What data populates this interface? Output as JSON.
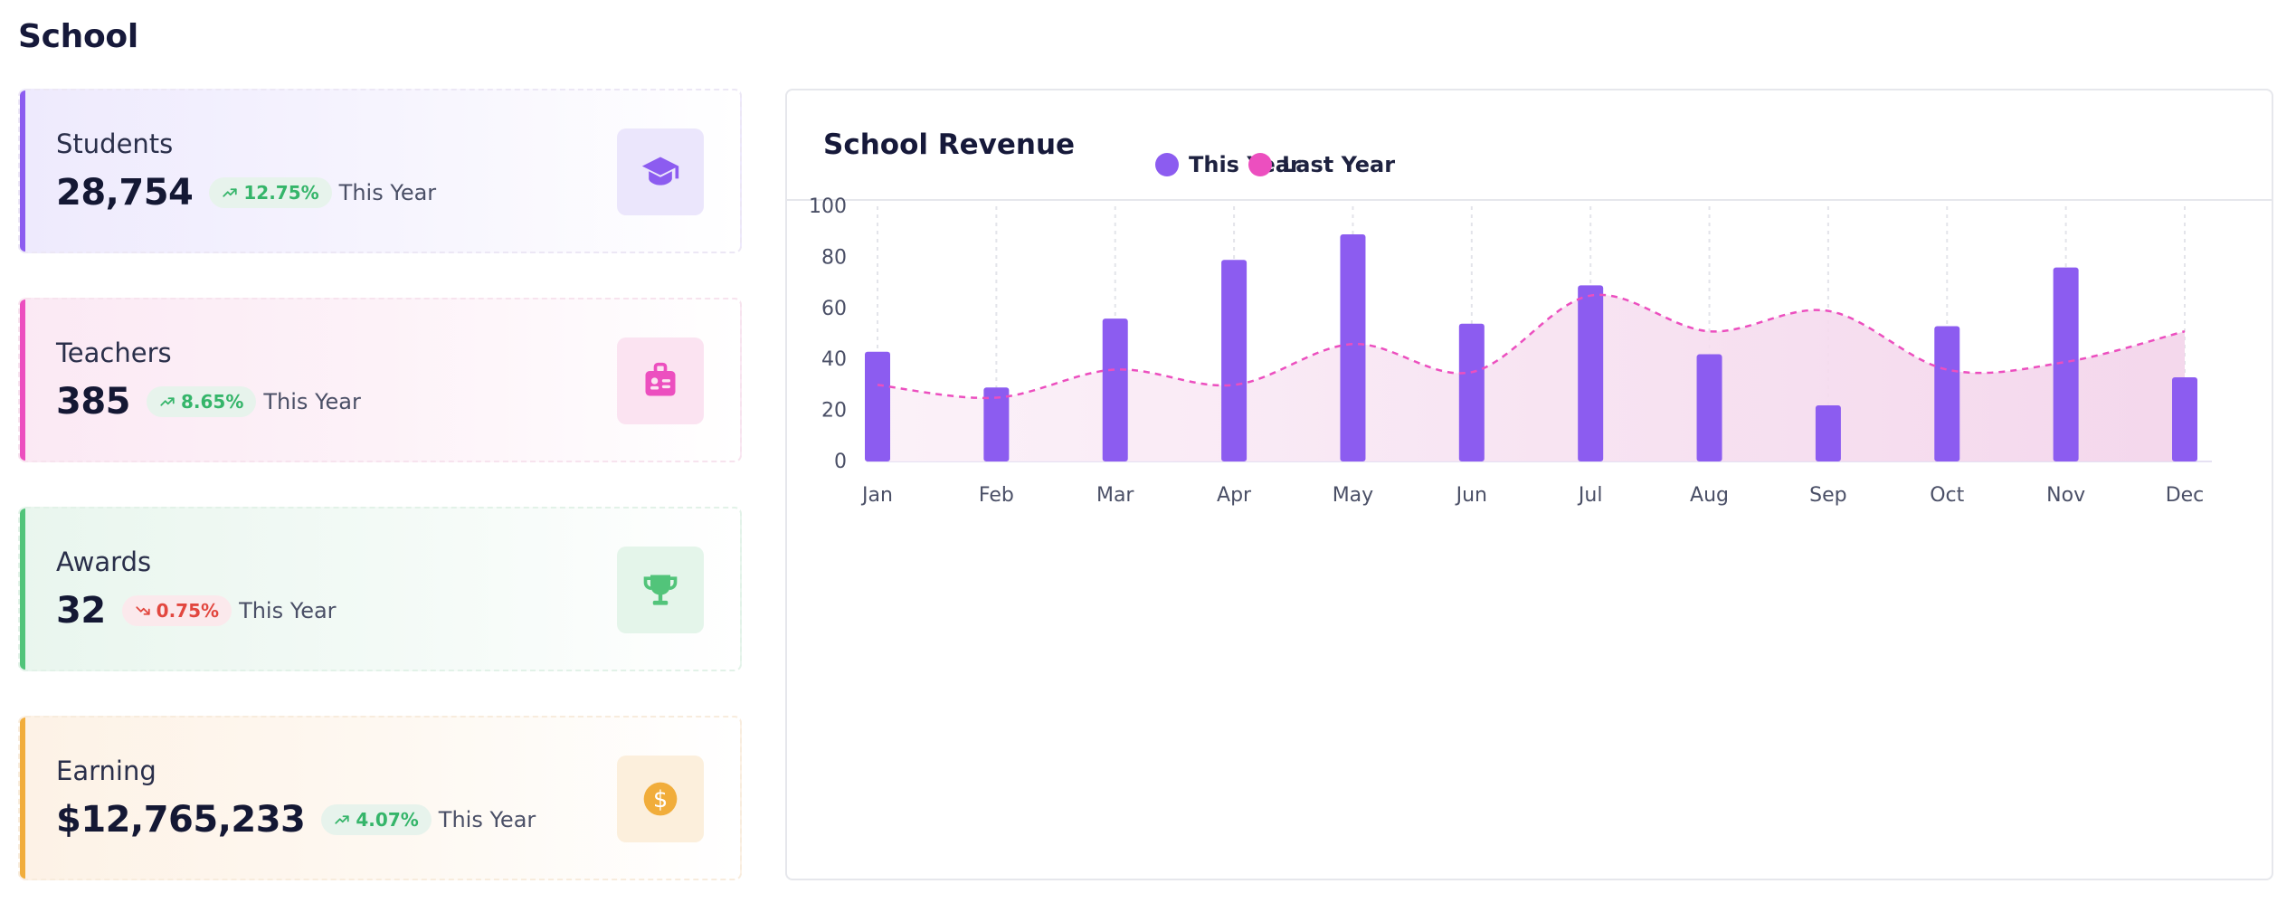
{
  "page_title": "School",
  "cards": {
    "students": {
      "label": "Students",
      "value": "28,754",
      "change": "12.75%",
      "trend": "up",
      "period": "This Year",
      "icon": "graduation-cap-icon",
      "accent": "#8c5cf0"
    },
    "teachers": {
      "label": "Teachers",
      "value": "385",
      "change": "8.65%",
      "trend": "up",
      "period": "This Year",
      "icon": "id-badge-icon",
      "accent": "#ec4fbf"
    },
    "awards": {
      "label": "Awards",
      "value": "32",
      "change": "0.75%",
      "trend": "down",
      "period": "This Year",
      "icon": "trophy-icon",
      "accent": "#52c47a"
    },
    "earning": {
      "label": "Earning",
      "value": "$12,765,233",
      "change": "4.07%",
      "trend": "up",
      "period": "This Year",
      "icon": "dollar-coin-icon",
      "accent": "#f1ad3b"
    }
  },
  "revenue": {
    "title": "School Revenue"
  },
  "chart_data": {
    "type": "bar",
    "title": "School Revenue",
    "categories": [
      "Jan",
      "Feb",
      "Mar",
      "Apr",
      "May",
      "Jun",
      "Jul",
      "Aug",
      "Sep",
      "Oct",
      "Nov",
      "Dec"
    ],
    "series": [
      {
        "name": "This Year",
        "type": "bar",
        "color": "#8c5cf0",
        "values": [
          43,
          29,
          56,
          79,
          89,
          54,
          69,
          42,
          22,
          53,
          76,
          33
        ]
      },
      {
        "name": "Last Year",
        "type": "area-dashed-line",
        "color": "#ec4fbf",
        "values": [
          30,
          25,
          36,
          30,
          46,
          35,
          65,
          51,
          59,
          36,
          39,
          51
        ]
      }
    ],
    "yticks": [
      0,
      20,
      40,
      60,
      80,
      100
    ],
    "ylim": [
      0,
      100
    ],
    "legend_position": "top-center",
    "grid": "vertical-dashed"
  }
}
